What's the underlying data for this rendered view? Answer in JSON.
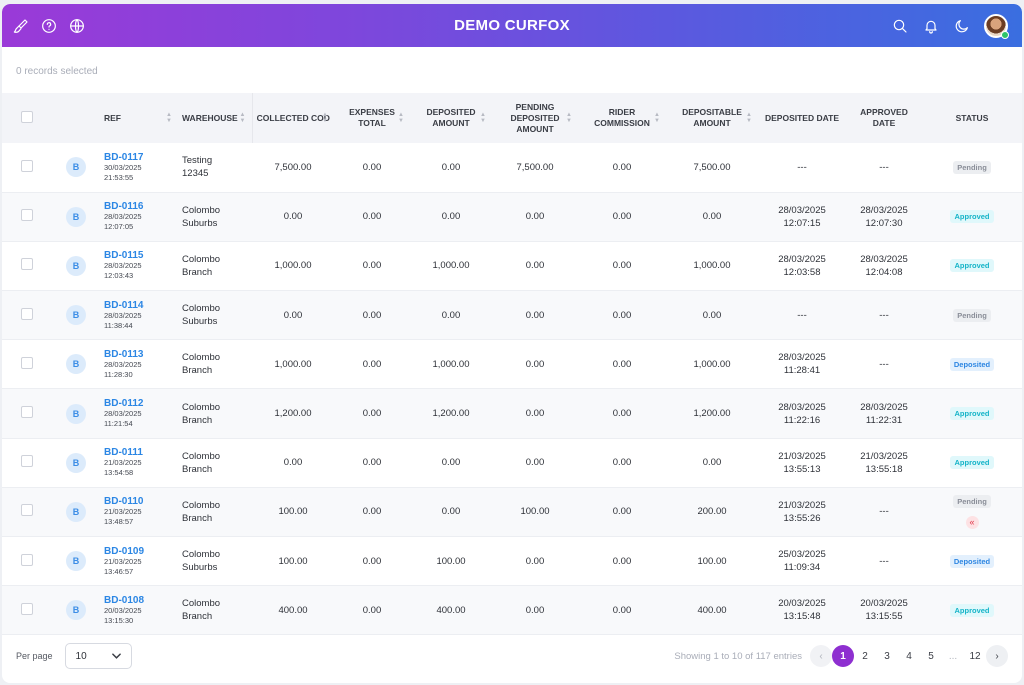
{
  "app": {
    "title": "DEMO CURFOX"
  },
  "topbar": {
    "left_icons": [
      "brush-icon",
      "help-circle-icon",
      "globe-icon"
    ],
    "right_icons": [
      "search-icon",
      "bell-icon",
      "moon-icon"
    ]
  },
  "selection": {
    "text": "0 records selected"
  },
  "table": {
    "headers": {
      "ref": "REF",
      "warehouse": "WAREHOUSE",
      "collected_cod": "COLLECTED COD",
      "expenses_total": "EXPENSES TOTAL",
      "deposited_amount": "DEPOSITED AMOUNT",
      "pending_deposited_amount": "PENDING DEPOSITED AMOUNT",
      "rider_commission": "RIDER COMMISSION",
      "depositable_amount": "DEPOSITABLE AMOUNT",
      "deposited_date": "DEPOSITED DATE",
      "approved_date": "APPROVED DATE",
      "status": "STATUS"
    },
    "rows": [
      {
        "badge": "B",
        "ref": "BD-0117",
        "ref_date": "30/03/2025",
        "ref_time": "21:53:55",
        "warehouse_1": "Testing",
        "warehouse_2": "12345",
        "collected_cod": "7,500.00",
        "expenses_total": "0.00",
        "deposited_amount": "0.00",
        "pending_deposited_amount": "7,500.00",
        "rider_commission": "0.00",
        "depositable_amount": "7,500.00",
        "deposited_date": "---",
        "deposited_time": "",
        "approved_date": "---",
        "approved_time": "",
        "status": "Pending",
        "status_type": "pending",
        "expand": false
      },
      {
        "badge": "B",
        "ref": "BD-0116",
        "ref_date": "28/03/2025",
        "ref_time": "12:07:05",
        "warehouse_1": "Colombo",
        "warehouse_2": "Suburbs",
        "collected_cod": "0.00",
        "expenses_total": "0.00",
        "deposited_amount": "0.00",
        "pending_deposited_amount": "0.00",
        "rider_commission": "0.00",
        "depositable_amount": "0.00",
        "deposited_date": "28/03/2025",
        "deposited_time": "12:07:15",
        "approved_date": "28/03/2025",
        "approved_time": "12:07:30",
        "status": "Approved",
        "status_type": "approved",
        "expand": false
      },
      {
        "badge": "B",
        "ref": "BD-0115",
        "ref_date": "28/03/2025",
        "ref_time": "12:03:43",
        "warehouse_1": "Colombo",
        "warehouse_2": "Branch",
        "collected_cod": "1,000.00",
        "expenses_total": "0.00",
        "deposited_amount": "1,000.00",
        "pending_deposited_amount": "0.00",
        "rider_commission": "0.00",
        "depositable_amount": "1,000.00",
        "deposited_date": "28/03/2025",
        "deposited_time": "12:03:58",
        "approved_date": "28/03/2025",
        "approved_time": "12:04:08",
        "status": "Approved",
        "status_type": "approved",
        "expand": false
      },
      {
        "badge": "B",
        "ref": "BD-0114",
        "ref_date": "28/03/2025",
        "ref_time": "11:38:44",
        "warehouse_1": "Colombo",
        "warehouse_2": "Suburbs",
        "collected_cod": "0.00",
        "expenses_total": "0.00",
        "deposited_amount": "0.00",
        "pending_deposited_amount": "0.00",
        "rider_commission": "0.00",
        "depositable_amount": "0.00",
        "deposited_date": "---",
        "deposited_time": "",
        "approved_date": "---",
        "approved_time": "",
        "status": "Pending",
        "status_type": "pending",
        "expand": false
      },
      {
        "badge": "B",
        "ref": "BD-0113",
        "ref_date": "28/03/2025",
        "ref_time": "11:28:30",
        "warehouse_1": "Colombo",
        "warehouse_2": "Branch",
        "collected_cod": "1,000.00",
        "expenses_total": "0.00",
        "deposited_amount": "1,000.00",
        "pending_deposited_amount": "0.00",
        "rider_commission": "0.00",
        "depositable_amount": "1,000.00",
        "deposited_date": "28/03/2025",
        "deposited_time": "11:28:41",
        "approved_date": "---",
        "approved_time": "",
        "status": "Deposited",
        "status_type": "deposited",
        "expand": false
      },
      {
        "badge": "B",
        "ref": "BD-0112",
        "ref_date": "28/03/2025",
        "ref_time": "11:21:54",
        "warehouse_1": "Colombo",
        "warehouse_2": "Branch",
        "collected_cod": "1,200.00",
        "expenses_total": "0.00",
        "deposited_amount": "1,200.00",
        "pending_deposited_amount": "0.00",
        "rider_commission": "0.00",
        "depositable_amount": "1,200.00",
        "deposited_date": "28/03/2025",
        "deposited_time": "11:22:16",
        "approved_date": "28/03/2025",
        "approved_time": "11:22:31",
        "status": "Approved",
        "status_type": "approved",
        "expand": false
      },
      {
        "badge": "B",
        "ref": "BD-0111",
        "ref_date": "21/03/2025",
        "ref_time": "13:54:58",
        "warehouse_1": "Colombo",
        "warehouse_2": "Branch",
        "collected_cod": "0.00",
        "expenses_total": "0.00",
        "deposited_amount": "0.00",
        "pending_deposited_amount": "0.00",
        "rider_commission": "0.00",
        "depositable_amount": "0.00",
        "deposited_date": "21/03/2025",
        "deposited_time": "13:55:13",
        "approved_date": "21/03/2025",
        "approved_time": "13:55:18",
        "status": "Approved",
        "status_type": "approved",
        "expand": false
      },
      {
        "badge": "B",
        "ref": "BD-0110",
        "ref_date": "21/03/2025",
        "ref_time": "13:48:57",
        "warehouse_1": "Colombo",
        "warehouse_2": "Branch",
        "collected_cod": "100.00",
        "expenses_total": "0.00",
        "deposited_amount": "0.00",
        "pending_deposited_amount": "100.00",
        "rider_commission": "0.00",
        "depositable_amount": "200.00",
        "deposited_date": "21/03/2025",
        "deposited_time": "13:55:26",
        "approved_date": "---",
        "approved_time": "",
        "status": "Pending",
        "status_type": "pending",
        "expand": true,
        "expand_glyph": "«"
      },
      {
        "badge": "B",
        "ref": "BD-0109",
        "ref_date": "21/03/2025",
        "ref_time": "13:46:57",
        "warehouse_1": "Colombo",
        "warehouse_2": "Suburbs",
        "collected_cod": "100.00",
        "expenses_total": "0.00",
        "deposited_amount": "100.00",
        "pending_deposited_amount": "0.00",
        "rider_commission": "0.00",
        "depositable_amount": "100.00",
        "deposited_date": "25/03/2025",
        "deposited_time": "11:09:34",
        "approved_date": "---",
        "approved_time": "",
        "status": "Deposited",
        "status_type": "deposited",
        "expand": false
      },
      {
        "badge": "B",
        "ref": "BD-0108",
        "ref_date": "20/03/2025",
        "ref_time": "13:15:30",
        "warehouse_1": "Colombo",
        "warehouse_2": "Branch",
        "collected_cod": "400.00",
        "expenses_total": "0.00",
        "deposited_amount": "400.00",
        "pending_deposited_amount": "0.00",
        "rider_commission": "0.00",
        "depositable_amount": "400.00",
        "deposited_date": "20/03/2025",
        "deposited_time": "13:15:48",
        "approved_date": "20/03/2025",
        "approved_time": "13:15:55",
        "status": "Approved",
        "status_type": "approved",
        "expand": false
      }
    ]
  },
  "footer": {
    "per_page_label": "Per page",
    "per_page_value": "10",
    "showing_text": "Showing 1 to 10 of 117 entries",
    "pages": [
      "1",
      "2",
      "3",
      "4",
      "5",
      "...",
      "12"
    ],
    "active_page": "1",
    "prev_glyph": "‹",
    "next_glyph": "›"
  },
  "colors": {
    "header_gradient_start": "#9a3ad8",
    "header_gradient_end": "#3a6ee0",
    "link": "#2b86e4",
    "active_page": "#8e2fd0",
    "approved": "#15b4c8",
    "deposited": "#2d86e2",
    "pending": "#8a8e98"
  }
}
